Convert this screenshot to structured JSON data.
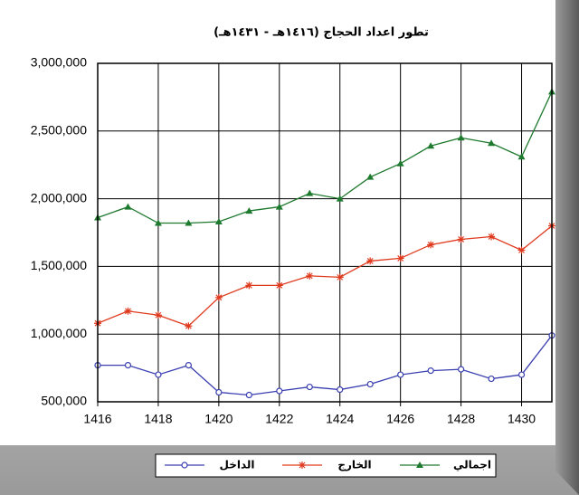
{
  "chart_data": {
    "type": "line",
    "title": "تطور اعداد الحجاج (١٤١٦هـ - ١٤٣١هـ)",
    "x": [
      1416,
      1417,
      1418,
      1419,
      1420,
      1421,
      1422,
      1423,
      1424,
      1425,
      1426,
      1427,
      1428,
      1429,
      1430,
      1431
    ],
    "series": [
      {
        "name": "الداخل",
        "color": "#3a3fb0",
        "marker": "circle",
        "values": [
          770000,
          770000,
          700000,
          770000,
          570000,
          550000,
          580000,
          610000,
          590000,
          630000,
          700000,
          730000,
          740000,
          670000,
          700000,
          990000
        ]
      },
      {
        "name": "الخارج",
        "color": "#e03a1e",
        "marker": "star",
        "values": [
          1080000,
          1170000,
          1140000,
          1060000,
          1270000,
          1360000,
          1360000,
          1430000,
          1420000,
          1540000,
          1560000,
          1660000,
          1700000,
          1720000,
          1620000,
          1800000
        ]
      },
      {
        "name": "اجمالي",
        "color": "#1e7a2e",
        "marker": "triangle",
        "values": [
          1860000,
          1940000,
          1820000,
          1820000,
          1830000,
          1910000,
          1940000,
          2040000,
          2000000,
          2160000,
          2260000,
          2390000,
          2450000,
          2410000,
          2310000,
          2790000
        ]
      }
    ],
    "xlim": [
      1416,
      1431
    ],
    "xticks": [
      1416,
      1418,
      1420,
      1422,
      1424,
      1426,
      1428,
      1430
    ],
    "ylim": [
      500000,
      3000000
    ],
    "yticks": [
      {
        "value": 500000,
        "label": "500,000"
      },
      {
        "value": 1000000,
        "label": "1,000,000"
      },
      {
        "value": 1500000,
        "label": "1,500,000"
      },
      {
        "value": 2000000,
        "label": "2,000,000"
      },
      {
        "value": 2500000,
        "label": "2,500,000"
      },
      {
        "value": 3000000,
        "label": "3,000,000"
      }
    ],
    "grid": true
  }
}
